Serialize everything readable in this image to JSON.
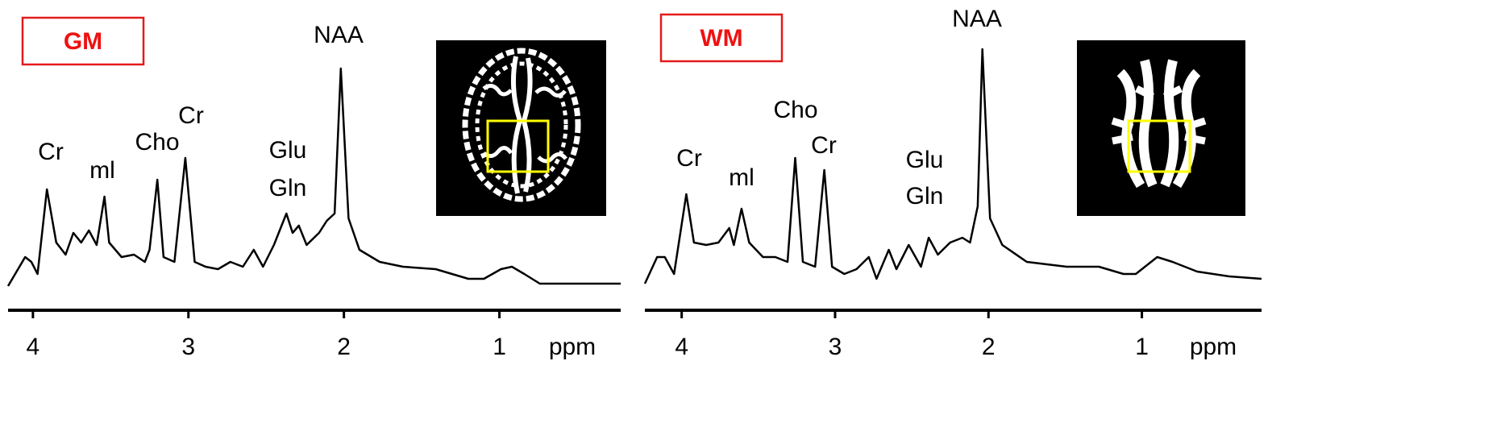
{
  "chart_data": [
    {
      "type": "line",
      "title": "GM",
      "x_label": "ppm",
      "color": "#000000",
      "x": [
        4.16,
        4.05,
        4.01,
        3.97,
        3.91,
        3.85,
        3.79,
        3.74,
        3.69,
        3.64,
        3.59,
        3.54,
        3.51,
        3.43,
        3.35,
        3.28,
        3.25,
        3.2,
        3.16,
        3.09,
        3.02,
        2.96,
        2.89,
        2.81,
        2.73,
        2.65,
        2.58,
        2.52,
        2.45,
        2.37,
        2.33,
        2.29,
        2.24,
        2.16,
        2.11,
        2.06,
        2.02,
        1.97,
        1.9,
        1.77,
        1.62,
        1.41,
        1.2,
        1.1,
        0.99,
        0.92,
        0.84,
        0.74,
        0.48,
        0.22
      ],
      "values": [
        5,
        17,
        15,
        10,
        45,
        23,
        18,
        27,
        23,
        28,
        22,
        42,
        23,
        17,
        18,
        15,
        20,
        49,
        17,
        15,
        58,
        15,
        13,
        12,
        15,
        13,
        20,
        13,
        22,
        35,
        27,
        30,
        22,
        27,
        32,
        35,
        95,
        33,
        20,
        15,
        13,
        12,
        8,
        8,
        12,
        13,
        10,
        6,
        6,
        6
      ],
      "xlim": [
        4.16,
        0.22
      ],
      "xticks": [
        4,
        3,
        2,
        1
      ],
      "ylim": [
        0,
        110
      ],
      "annotations": [
        "NAA",
        "Cr",
        "ml",
        "Cho",
        "Cr",
        "Glu",
        "Gln"
      ]
    },
    {
      "type": "line",
      "title": "WM",
      "x_label": "ppm",
      "color": "#000000",
      "x": [
        4.24,
        4.16,
        4.11,
        4.05,
        3.97,
        3.92,
        3.84,
        3.76,
        3.69,
        3.66,
        3.61,
        3.56,
        3.47,
        3.39,
        3.31,
        3.26,
        3.21,
        3.13,
        3.07,
        3.02,
        2.94,
        2.86,
        2.78,
        2.73,
        2.65,
        2.6,
        2.52,
        2.44,
        2.39,
        2.33,
        2.25,
        2.17,
        2.12,
        2.07,
        2.04,
        1.99,
        1.91,
        1.75,
        1.49,
        1.28,
        1.12,
        1.04,
        0.9,
        0.8,
        0.64,
        0.43,
        0.22
      ],
      "values": [
        6,
        17,
        17,
        10,
        43,
        23,
        22,
        23,
        29,
        22,
        37,
        23,
        17,
        17,
        15,
        58,
        15,
        13,
        53,
        13,
        10,
        12,
        17,
        8,
        20,
        12,
        22,
        13,
        25,
        18,
        23,
        25,
        23,
        38,
        103,
        33,
        22,
        15,
        13,
        13,
        10,
        10,
        17,
        15,
        11,
        9,
        8
      ],
      "xlim": [
        4.24,
        0.22
      ],
      "xticks": [
        4,
        3,
        2,
        1
      ],
      "ylim": [
        0,
        110
      ],
      "annotations": [
        "NAA",
        "Cr",
        "ml",
        "Cho",
        "Cr",
        "Glu",
        "Gln"
      ]
    }
  ]
}
